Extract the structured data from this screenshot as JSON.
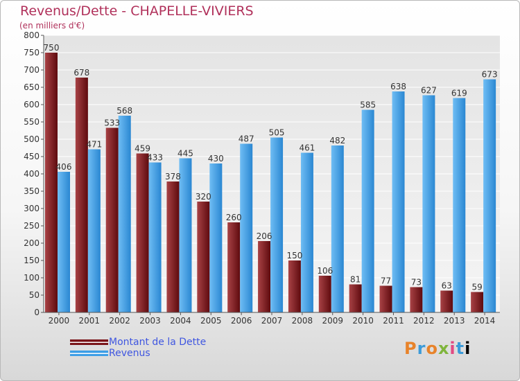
{
  "header": {
    "title": "Revenus/Dette - CHAPELLE-VIVIERS",
    "subtitle": "(en milliers d'€)"
  },
  "logo": {
    "text": "Proxiti"
  },
  "colors": {
    "dette": "#7a1418",
    "revenus": "#3d9ee6",
    "title": "#b0305a",
    "legend_text": "#3f56e0"
  },
  "chart_data": {
    "type": "bar",
    "title": "Revenus/Dette - CHAPELLE-VIVIERS",
    "subtitle": "(en milliers d'€)",
    "categories": [
      "2000",
      "2001",
      "2002",
      "2003",
      "2004",
      "2005",
      "2006",
      "2007",
      "2008",
      "2009",
      "2010",
      "2011",
      "2012",
      "2013",
      "2014"
    ],
    "series": [
      {
        "name": "Montant de la Dette",
        "color": "#7a1418",
        "values": [
          750,
          678,
          533,
          459,
          378,
          320,
          260,
          206,
          150,
          106,
          81,
          77,
          73,
          63,
          59
        ]
      },
      {
        "name": "Revenus",
        "color": "#3d9ee6",
        "values": [
          406,
          471,
          568,
          433,
          445,
          430,
          487,
          505,
          461,
          482,
          585,
          638,
          627,
          619,
          673
        ]
      }
    ],
    "ylim": [
      0,
      800
    ],
    "yticks": [
      0,
      50,
      100,
      150,
      200,
      250,
      300,
      350,
      400,
      450,
      500,
      550,
      600,
      650,
      700,
      750,
      800
    ],
    "grid": true,
    "legend": "bottom-left"
  }
}
